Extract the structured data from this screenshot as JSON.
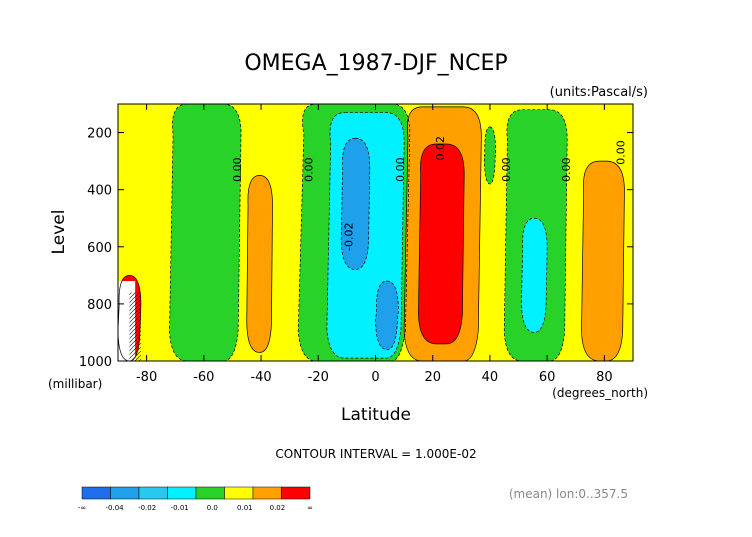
{
  "chart_data": {
    "type": "contour",
    "title": "OMEGA_1987-DJF_NCEP",
    "units_label": "(units:Pascal/s)",
    "xlabel": "Latitude",
    "x_units": "(degrees_north)",
    "ylabel": "Level",
    "y_units": "(millibar)",
    "xlim": [
      -90,
      90
    ],
    "ylim": [
      1000,
      100
    ],
    "y_inverted": true,
    "x_ticks": [
      -80,
      -60,
      -40,
      -20,
      0,
      20,
      40,
      60,
      80
    ],
    "x_tick_labels": [
      "-80",
      "-60",
      "-40",
      "-20",
      "0",
      "20",
      "40",
      "60",
      "80"
    ],
    "y_ticks": [
      200,
      400,
      600,
      800,
      1000
    ],
    "y_tick_labels": [
      "200",
      "400",
      "600",
      "800",
      "1000"
    ],
    "contour_interval_text": "CONTOUR INTERVAL = 1.000E-02",
    "mean_text": "(mean) lon:0..357.5",
    "contour_labels": [
      {
        "text": "0.00",
        "x": -47,
        "y": 330
      },
      {
        "text": "0.00",
        "x": -22,
        "y": 330
      },
      {
        "text": "0.00",
        "x": 10,
        "y": 330
      },
      {
        "text": "0.02",
        "x": 24,
        "y": 255
      },
      {
        "text": "-0.02",
        "x": -8,
        "y": 565
      },
      {
        "text": "0.00",
        "x": 47,
        "y": 330
      },
      {
        "text": "0.00",
        "x": 68,
        "y": 330
      },
      {
        "text": "0.00",
        "x": 87,
        "y": 270
      }
    ],
    "color_scale": {
      "boundaries": [
        "-∞",
        "-0.04",
        "-0.02",
        "-0.01",
        "0.0",
        "0.01",
        "0.02",
        "∞"
      ],
      "colors": [
        "#1e6eeb",
        "#1ea0eb",
        "#28c8f0",
        "#00f0ff",
        "#28d228",
        "#ffff00",
        "#ffa000",
        "#ff0000"
      ]
    },
    "regions": [
      {
        "value_class": "0.0 to 0.01",
        "color": "#ffff00",
        "description": "background"
      },
      {
        "value_class": "-0.01 to 0.0",
        "color": "#28d228",
        "lat_range": [
          -72,
          -47
        ],
        "p_range": [
          100,
          1000
        ]
      },
      {
        "value_class": "-0.01 to 0.0",
        "color": "#28d228",
        "lat_range": [
          -27,
          12
        ],
        "p_range": [
          100,
          1000
        ]
      },
      {
        "value_class": "-0.02 to -0.01",
        "color": "#00f0ff",
        "lat_range": [
          -17,
          10
        ],
        "p_range": [
          130,
          990
        ]
      },
      {
        "value_class": "-0.04 to -0.02",
        "color": "#1ea0eb",
        "lat_range": [
          -12,
          -2
        ],
        "p_range": [
          220,
          680
        ]
      },
      {
        "value_class": "-0.04 to -0.02",
        "color": "#1ea0eb",
        "lat_range": [
          0,
          8
        ],
        "p_range": [
          720,
          960
        ]
      },
      {
        "value_class": "0.01 to 0.02",
        "color": "#ffa000",
        "lat_range": [
          10,
          37
        ],
        "p_range": [
          110,
          1000
        ]
      },
      {
        "value_class": "> 0.02",
        "color": "#ff0000",
        "lat_range": [
          15,
          31
        ],
        "p_range": [
          240,
          940
        ]
      },
      {
        "value_class": "0.01 to 0.02",
        "color": "#ffa000",
        "lat_range": [
          -45,
          -36
        ],
        "p_range": [
          350,
          970
        ]
      },
      {
        "value_class": "-0.01 to 0.0",
        "color": "#28d228",
        "lat_range": [
          38,
          42
        ],
        "p_range": [
          180,
          380
        ]
      },
      {
        "value_class": "-0.01 to 0.0",
        "color": "#28d228",
        "lat_range": [
          45,
          67
        ],
        "p_range": [
          120,
          1000
        ]
      },
      {
        "value_class": "-0.02 to -0.01",
        "color": "#00f0ff",
        "lat_range": [
          51,
          60
        ],
        "p_range": [
          500,
          900
        ]
      },
      {
        "value_class": "0.01 to 0.02",
        "color": "#ffa000",
        "lat_range": [
          72,
          87
        ],
        "p_range": [
          300,
          1000
        ]
      },
      {
        "value_class": "> 0.02",
        "color": "#ff0000",
        "lat_range": [
          -90,
          -82
        ],
        "p_range": [
          700,
          1000
        ]
      }
    ]
  }
}
